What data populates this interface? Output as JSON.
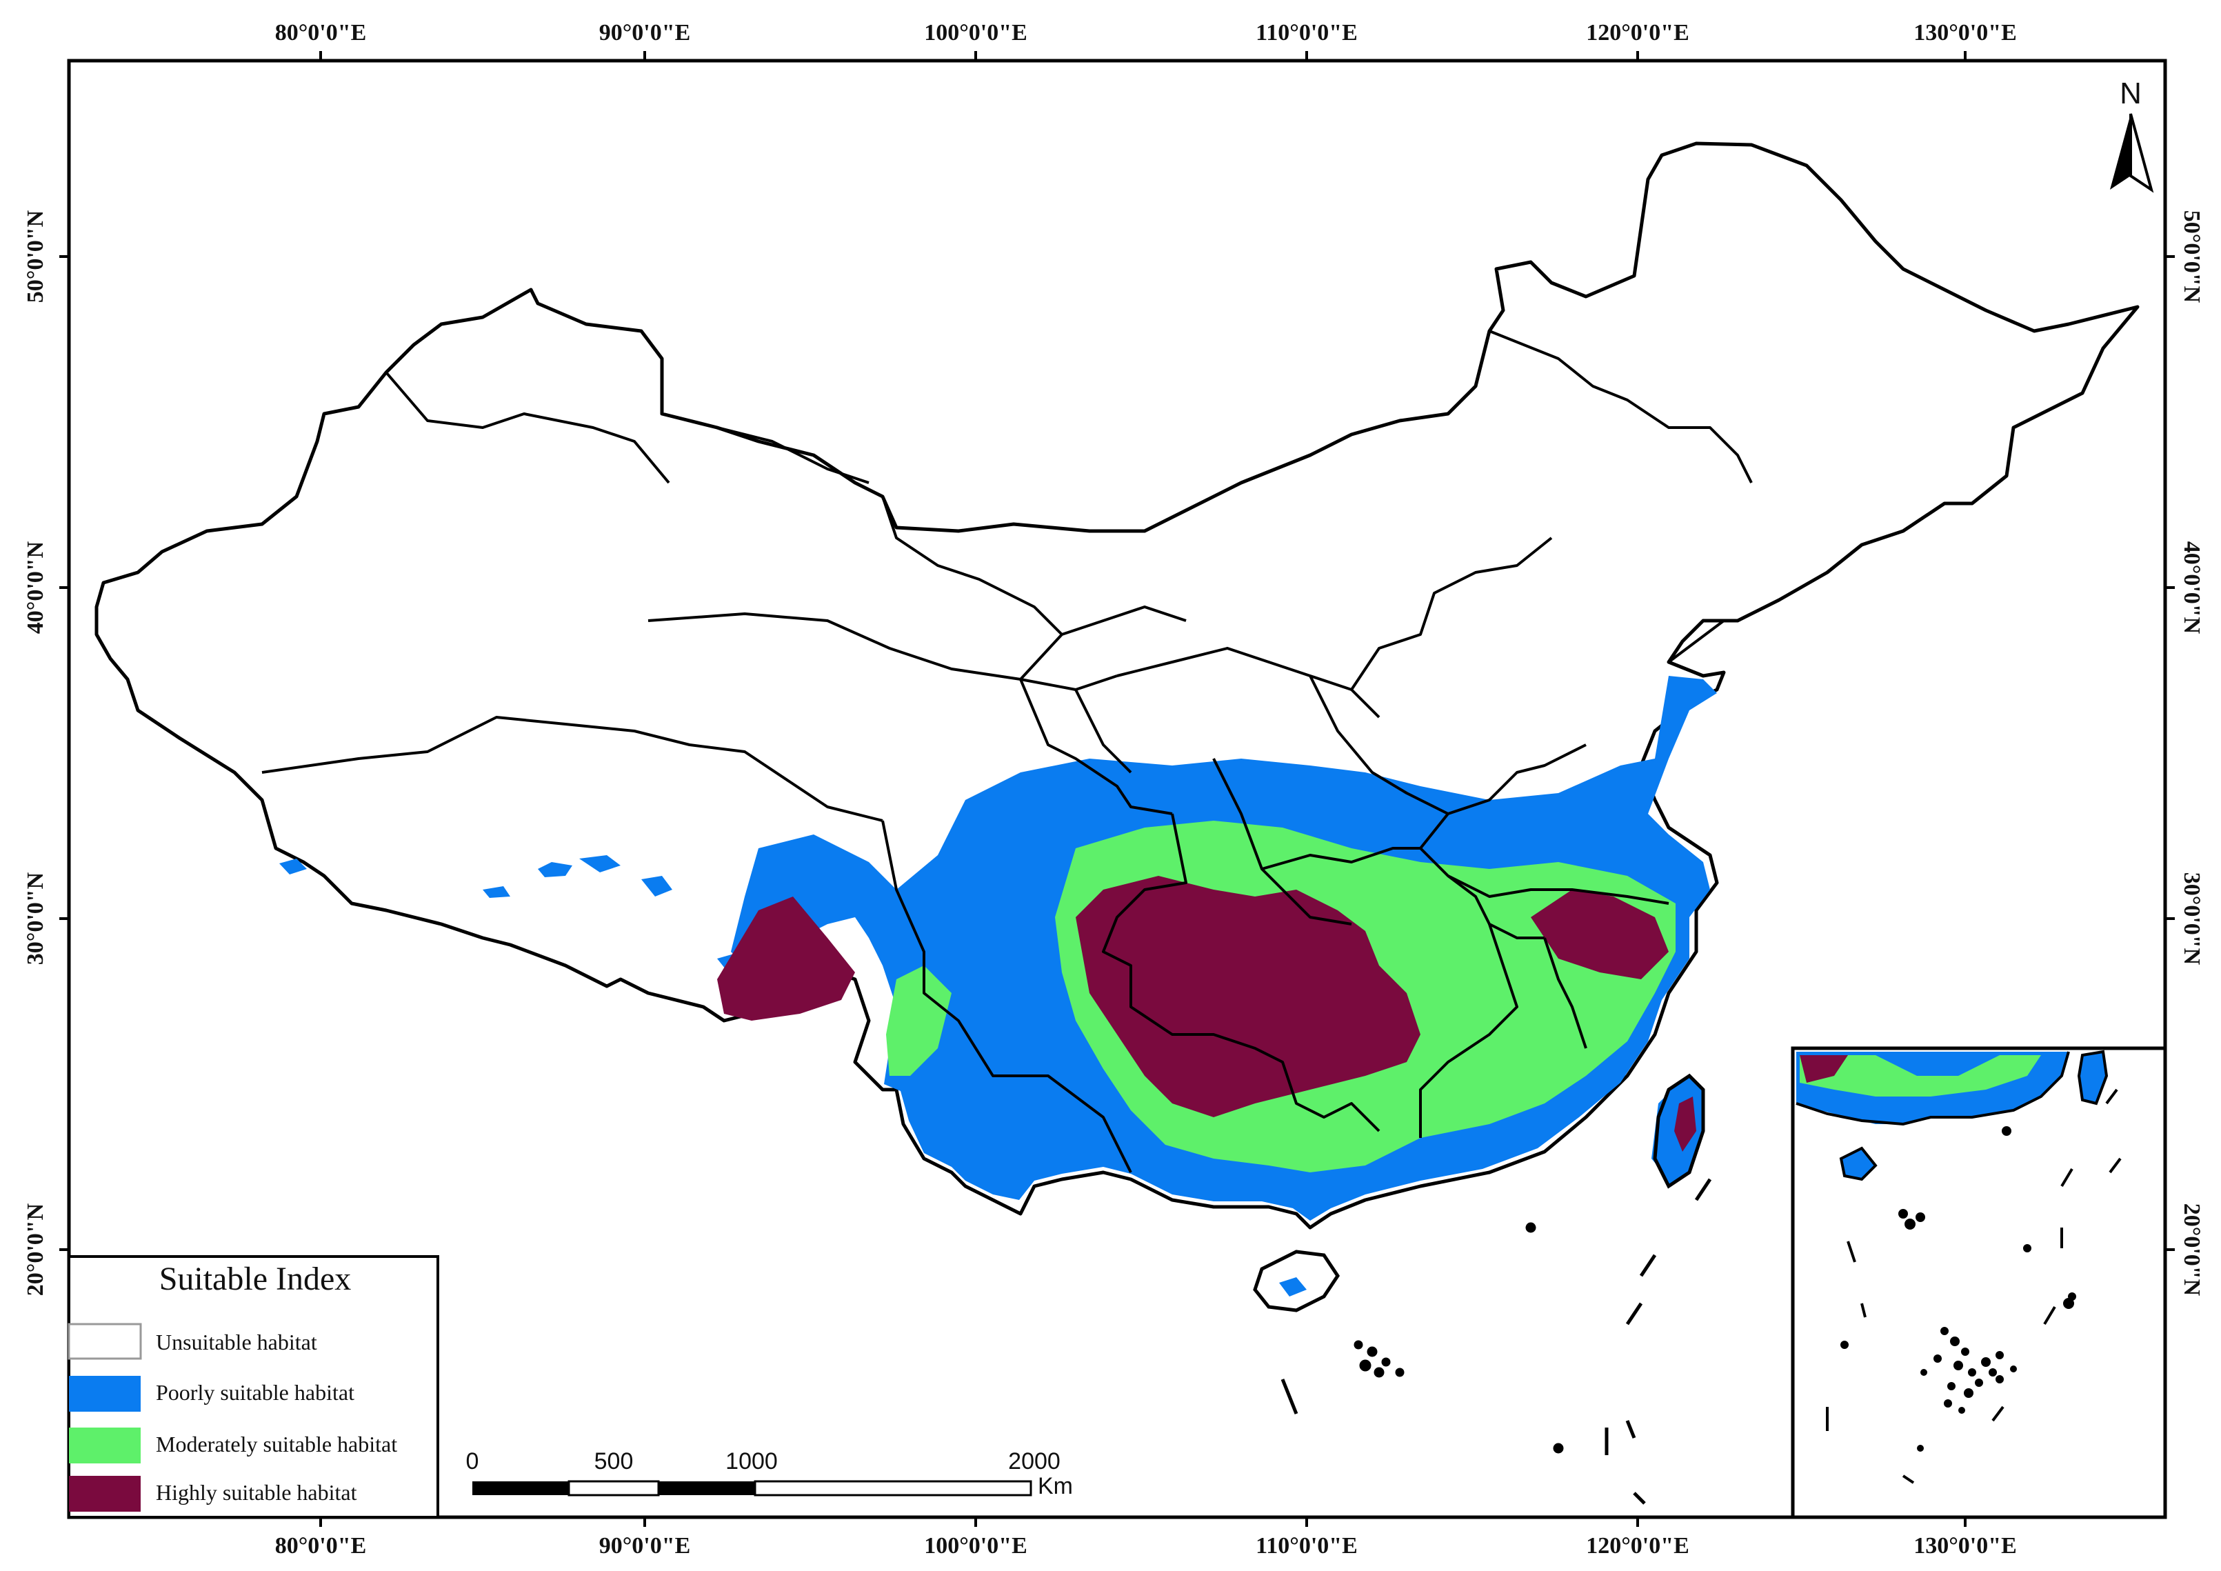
{
  "map": {
    "axes": {
      "top_labels": [
        "80°0'0\"E",
        "90°0'0\"E",
        "100°0'0\"E",
        "110°0'0\"E",
        "120°0'0\"E",
        "130°0'0\"E"
      ],
      "bottom_labels": [
        "80°0'0\"E",
        "90°0'0\"E",
        "100°0'0\"E",
        "110°0'0\"E",
        "120°0'0\"E",
        "130°0'0\"E"
      ],
      "left_labels": [
        "50°0'0\"N",
        "40°0'0\"N",
        "30°0'0\"N",
        "20°0'0\"N"
      ],
      "right_labels": [
        "50°0'0\"N",
        "40°0'0\"N",
        "30°0'0\"N",
        "20°0'0\"N"
      ]
    },
    "north_arrow": {
      "label": "N",
      "icon": "north-arrow-icon"
    },
    "legend": {
      "title": "Suitable Index",
      "items": [
        {
          "label": "Unsuitable habitat",
          "color": "#ffffff"
        },
        {
          "label": "Poorly suitable habitat",
          "color": "#0a7cf0"
        },
        {
          "label": "Moderately suitable habitat",
          "color": "#5ef06a"
        },
        {
          "label": "Highly suitable habitat",
          "color": "#7a0a3e"
        }
      ]
    },
    "scale_bar": {
      "ticks": [
        "0",
        "500",
        "1000",
        "2000"
      ],
      "unit": "Km"
    },
    "colors": {
      "unsuitable": "#ffffff",
      "poorly": "#0a7cf0",
      "moderately": "#5ef06a",
      "highly": "#7a0a3e",
      "boundary": "#000000"
    }
  }
}
